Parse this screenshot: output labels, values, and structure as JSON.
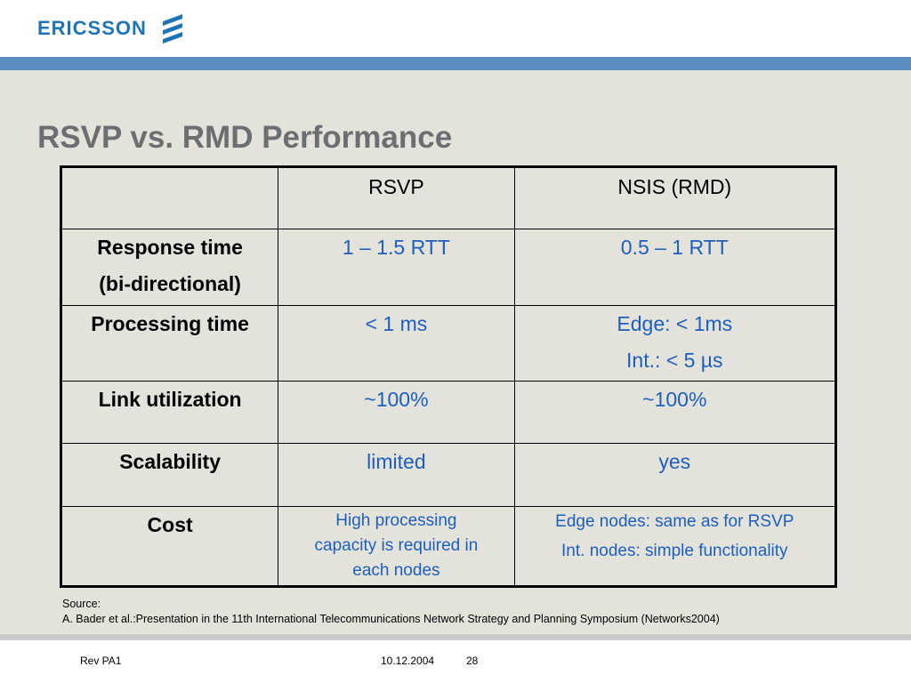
{
  "header": {
    "logo_text": "ERICSSON",
    "logo_icon": "ericsson-stripes-icon",
    "brand_color": "#1f74b8",
    "bar_color": "#5b8cc2"
  },
  "slide": {
    "title": "RSVP vs. RMD Performance",
    "table": {
      "columns": [
        "",
        "RSVP",
        "NSIS (RMD)"
      ],
      "rows": [
        {
          "label": [
            "Response time",
            "(bi-directional)"
          ],
          "rsvp": [
            "1 – 1.5 RTT"
          ],
          "nsis": [
            "0.5 – 1 RTT"
          ]
        },
        {
          "label": [
            "Processing time"
          ],
          "rsvp": [
            "< 1 ms"
          ],
          "nsis": [
            "Edge: < 1ms",
            "Int.: < 5 µs"
          ]
        },
        {
          "label": [
            "Link utilization"
          ],
          "rsvp": [
            "~100%"
          ],
          "nsis": [
            "~100%"
          ]
        },
        {
          "label": [
            "Scalability"
          ],
          "rsvp": [
            "limited"
          ],
          "nsis": [
            "yes"
          ]
        },
        {
          "label": [
            "Cost"
          ],
          "rsvp": [
            "High processing",
            "capacity is required in",
            "each nodes"
          ],
          "nsis": [
            "Edge nodes: same as for RSVP",
            "Int. nodes: simple functionality"
          ]
        }
      ]
    },
    "source": {
      "label": "Source:",
      "text": "A. Bader et al.:Presentation in the 11th International Telecommunications Network Strategy and Planning Symposium (Networks2004)"
    }
  },
  "footer": {
    "revision": "Rev PA1",
    "date": "10.12.2004",
    "page_number": "28"
  }
}
